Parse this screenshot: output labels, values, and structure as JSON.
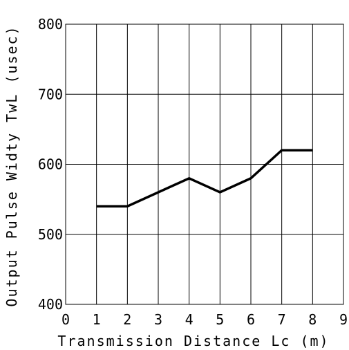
{
  "chart_data": {
    "type": "line",
    "title": "",
    "xlabel": "Transmission Distance Lc (m)",
    "ylabel": "Output Pulse Widty TwL (usec)",
    "xlim": [
      0,
      9
    ],
    "ylim": [
      400,
      800
    ],
    "x_ticks": [
      "0",
      "1",
      "2",
      "3",
      "4",
      "5",
      "6",
      "7",
      "8",
      "9"
    ],
    "y_ticks": [
      "400",
      "500",
      "600",
      "700",
      "800"
    ],
    "grid": true,
    "series": [
      {
        "x": [
          1,
          2,
          3,
          4,
          5,
          6,
          7,
          8
        ],
        "y": [
          540,
          540,
          560,
          580,
          560,
          580,
          620,
          620
        ],
        "color": "#000000"
      }
    ]
  }
}
